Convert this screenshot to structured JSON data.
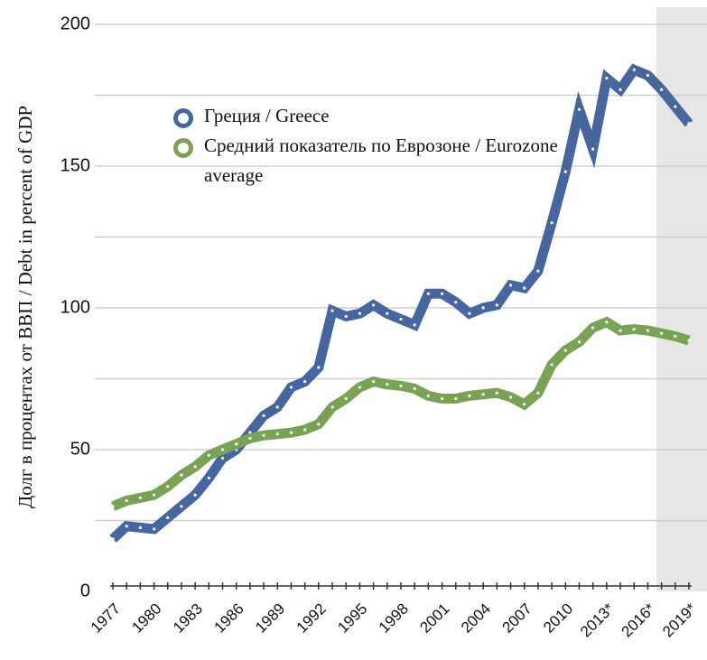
{
  "chart_data": {
    "type": "line",
    "y_label": "Долг в процентах от ВВП / Debt in percent of GDP",
    "categories": [
      "1977",
      null,
      null,
      "1980",
      null,
      null,
      "1983",
      null,
      null,
      "1986",
      null,
      null,
      "1989",
      null,
      null,
      "1992",
      null,
      null,
      "1995",
      null,
      null,
      "1998",
      null,
      null,
      "2001",
      null,
      null,
      "2004",
      null,
      null,
      "2007",
      null,
      null,
      "2010",
      null,
      null,
      "2013*",
      null,
      null,
      "2016*",
      null,
      null,
      "2019*"
    ],
    "series": [
      {
        "name": "Греция / Greece",
        "color": "#46669f",
        "values": [
          18.5,
          23,
          22.5,
          22,
          26,
          30,
          34,
          40,
          47,
          50,
          56,
          62,
          65,
          72,
          74,
          79,
          99,
          97,
          98,
          101,
          98,
          96,
          94,
          105,
          105,
          102,
          98,
          100,
          101,
          108,
          107,
          113,
          130,
          148,
          170,
          156,
          181,
          177,
          184,
          182,
          177,
          171,
          165
        ]
      },
      {
        "name": "Средний показатель по Еврозоне / Eurozone average",
        "color": "#77a353",
        "values": [
          30,
          32,
          33,
          34,
          37,
          41,
          44,
          48,
          50,
          52,
          54,
          55,
          55.5,
          56,
          57,
          59,
          65,
          68,
          72,
          74,
          73,
          72.5,
          71.5,
          69,
          68,
          68,
          69,
          69.5,
          70,
          68.5,
          66,
          70,
          80,
          85,
          88,
          93,
          95,
          92,
          92.5,
          92,
          91,
          90,
          88.5
        ]
      }
    ],
    "ylim": [
      0,
      200
    ],
    "yticks": [
      0,
      50,
      100,
      150,
      200
    ],
    "minor_gridlines": [
      25,
      75,
      125,
      175
    ],
    "grid": true,
    "legend": "upper left"
  }
}
